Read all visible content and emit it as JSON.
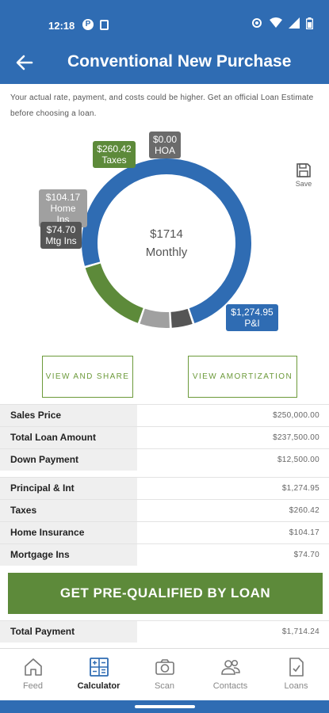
{
  "status_bar": {
    "time": "12:18",
    "notif_badge": "P"
  },
  "header": {
    "title": "Conventional New Purchase"
  },
  "disclaimer": "Your actual rate, payment, and costs could be higher. Get an official Loan Estimate before choosing a loan.",
  "chart_data": {
    "type": "pie",
    "center_value": "$1714",
    "center_label": "Monthly",
    "slices": [
      {
        "label": "P&I",
        "value": 1274.95,
        "display": "$1,274.95",
        "color": "#2f6cb3"
      },
      {
        "label": "Mtg Ins",
        "value": 74.7,
        "display": "$74.70",
        "color": "#555555"
      },
      {
        "label": "Home Ins",
        "value": 104.17,
        "display": "$104.17",
        "color": "#a0a0a0"
      },
      {
        "label": "Taxes",
        "value": 260.42,
        "display": "$260.42",
        "color": "#5d8a3a"
      },
      {
        "label": "HOA",
        "value": 0.0,
        "display": "$0.00",
        "color": "#707070"
      }
    ]
  },
  "save": {
    "label": "Save"
  },
  "buttons": {
    "view_share": "VIEW AND SHARE",
    "view_amort": "VIEW AMORTIZATION"
  },
  "loan_rows": [
    {
      "label": "Sales Price",
      "value": "$250,000.00"
    },
    {
      "label": "Total Loan Amount",
      "value": "$237,500.00"
    },
    {
      "label": "Down Payment",
      "value": "$12,500.00"
    }
  ],
  "payment_rows": [
    {
      "label": "Principal & Int",
      "value": "$1,274.95"
    },
    {
      "label": "Taxes",
      "value": "$260.42"
    },
    {
      "label": "Home Insurance",
      "value": "$104.17"
    },
    {
      "label": "Mortgage Ins",
      "value": "$74.70"
    }
  ],
  "cta": {
    "label": "GET PRE-QUALIFIED BY LOAN"
  },
  "total_row": {
    "label": "Total Payment",
    "value": "$1,714.24"
  },
  "tabs": [
    {
      "label": "Feed",
      "icon": "home-icon"
    },
    {
      "label": "Calculator",
      "icon": "calculator-icon"
    },
    {
      "label": "Scan",
      "icon": "camera-icon"
    },
    {
      "label": "Contacts",
      "icon": "contacts-icon"
    },
    {
      "label": "Loans",
      "icon": "document-icon"
    }
  ],
  "colors": {
    "brand_blue": "#2f6cb3",
    "brand_green": "#5d8a3a"
  }
}
